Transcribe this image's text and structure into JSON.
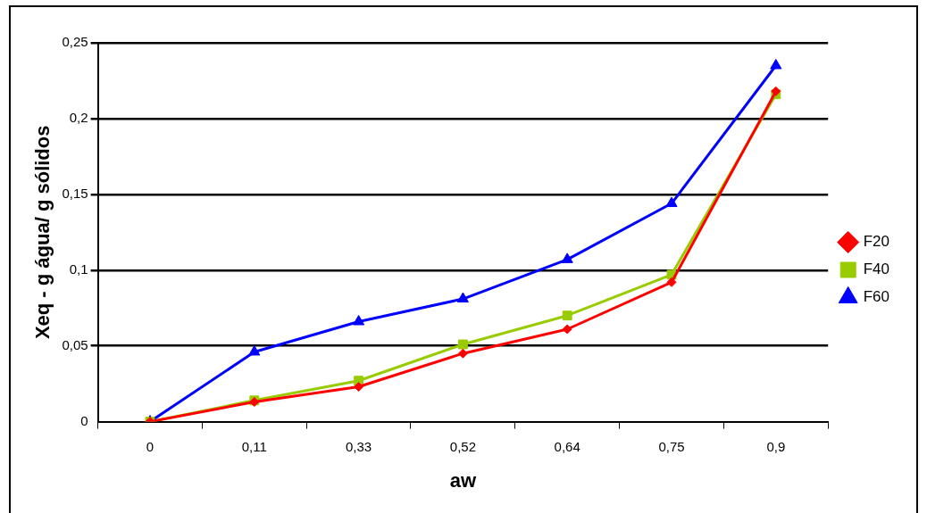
{
  "chart_data": {
    "type": "line",
    "xlabel": "aw",
    "ylabel": "Xeq - g água/ g sólidos",
    "categories": [
      "0",
      "0,11",
      "0,33",
      "0,52",
      "0,64",
      "0,75",
      "0,9"
    ],
    "series": [
      {
        "name": "F20",
        "color": "#ff0000",
        "marker": "diamond",
        "values": [
          0,
          0.013,
          0.023,
          0.045,
          0.061,
          0.092,
          0.218
        ]
      },
      {
        "name": "F40",
        "color": "#99cc00",
        "marker": "square",
        "values": [
          0,
          0.014,
          0.027,
          0.051,
          0.07,
          0.097,
          0.216
        ]
      },
      {
        "name": "F60",
        "color": "#0000ff",
        "marker": "triangle",
        "values": [
          0,
          0.046,
          0.066,
          0.081,
          0.107,
          0.144,
          0.235
        ]
      }
    ],
    "ylim": [
      0,
      0.25
    ],
    "yticks": [
      {
        "value": 0,
        "label": "0"
      },
      {
        "value": 0.05,
        "label": "0,05"
      },
      {
        "value": 0.1,
        "label": "0,1"
      },
      {
        "value": 0.15,
        "label": "0,15"
      },
      {
        "value": 0.2,
        "label": "0,2"
      },
      {
        "value": 0.25,
        "label": "0,25"
      }
    ],
    "grid": "y",
    "legend": "right",
    "line_style": "solid"
  }
}
